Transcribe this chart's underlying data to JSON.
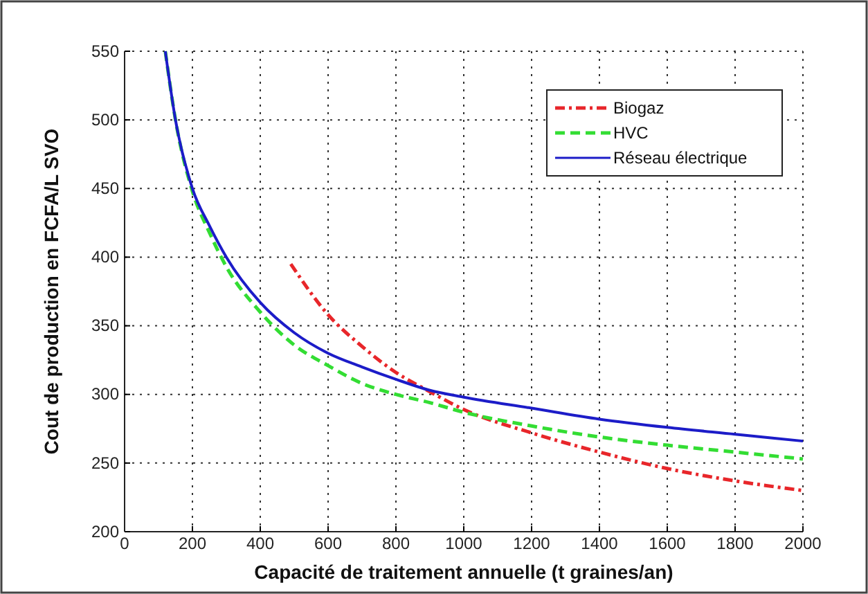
{
  "chart_data": {
    "type": "line",
    "xlabel": "Capacité de traitement annuelle (t graines/an)",
    "ylabel": "Cout de production en FCFA/L SVO",
    "xlim": [
      0,
      2000
    ],
    "xticks": [
      0,
      200,
      400,
      600,
      800,
      1000,
      1200,
      1400,
      1600,
      1800,
      2000
    ],
    "ylim": [
      200,
      550
    ],
    "yticks": [
      200,
      250,
      300,
      350,
      400,
      450,
      500,
      550
    ],
    "grid": true,
    "legend": "top right",
    "marker": "none",
    "series": [
      {
        "name": "Biogaz",
        "color": "#e8262a",
        "line_style": "dashdot",
        "x": [
          490,
          600,
          700,
          800,
          900,
          1000,
          1200,
          1400,
          1600,
          1800,
          2000
        ],
        "values": [
          395,
          358,
          335,
          316,
          302,
          289,
          272,
          258,
          246,
          237,
          230
        ]
      },
      {
        "name": "HVC",
        "color": "#33dd33",
        "line_style": "dashed",
        "x": [
          120,
          150,
          200,
          250,
          300,
          400,
          500,
          600,
          700,
          800,
          900,
          1000,
          1200,
          1400,
          1600,
          1800,
          2000
        ],
        "values": [
          550,
          500,
          448,
          418,
          393,
          360,
          336,
          321,
          308,
          300,
          294,
          287,
          277,
          269,
          263,
          258,
          253
        ]
      },
      {
        "name": "Réseau électrique",
        "color": "#1c1cc8",
        "line_style": "solid",
        "x": [
          120,
          150,
          200,
          250,
          300,
          400,
          500,
          600,
          700,
          800,
          900,
          1000,
          1200,
          1400,
          1600,
          1800,
          2000
        ],
        "values": [
          550,
          500,
          450,
          423,
          400,
          367,
          345,
          330,
          320,
          311,
          303,
          298,
          290,
          282,
          276,
          271,
          266
        ]
      }
    ]
  }
}
